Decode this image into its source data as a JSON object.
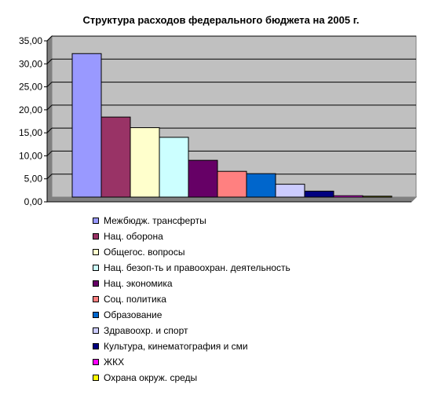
{
  "chart_data": {
    "type": "bar",
    "title": "Структура расходов федерального бюджета на 2005 г.",
    "xlabel": "",
    "ylabel": "",
    "ylim": [
      0,
      35
    ],
    "yticks": [
      "0,00",
      "5,00",
      "10,00",
      "15,00",
      "20,00",
      "25,00",
      "30,00",
      "35,00"
    ],
    "grid": true,
    "legend_position": "bottom",
    "series": [
      {
        "name": "Межбюдж. трансферты",
        "value": 31.2,
        "color": "#9999ff"
      },
      {
        "name": "Нац. оборона",
        "value": 17.4,
        "color": "#993366"
      },
      {
        "name": "Общегос. вопросы",
        "value": 15.1,
        "color": "#ffffcc"
      },
      {
        "name": "Нац. безоп-ть и правоохран. деятельность",
        "value": 13.0,
        "color": "#ccffff"
      },
      {
        "name": "Нац. экономика",
        "value": 8.0,
        "color": "#660066"
      },
      {
        "name": "Соц. политика",
        "value": 5.6,
        "color": "#ff8080"
      },
      {
        "name": "Образование",
        "value": 5.1,
        "color": "#0066cc"
      },
      {
        "name": "Здравоохр. и спорт",
        "value": 2.8,
        "color": "#ccccff"
      },
      {
        "name": "Культура, кинематография и сми",
        "value": 1.3,
        "color": "#000080"
      },
      {
        "name": "ЖКХ",
        "value": 0.3,
        "color": "#ff00ff"
      },
      {
        "name": "Охрана окруж. среды",
        "value": 0.2,
        "color": "#ffff00"
      }
    ]
  }
}
